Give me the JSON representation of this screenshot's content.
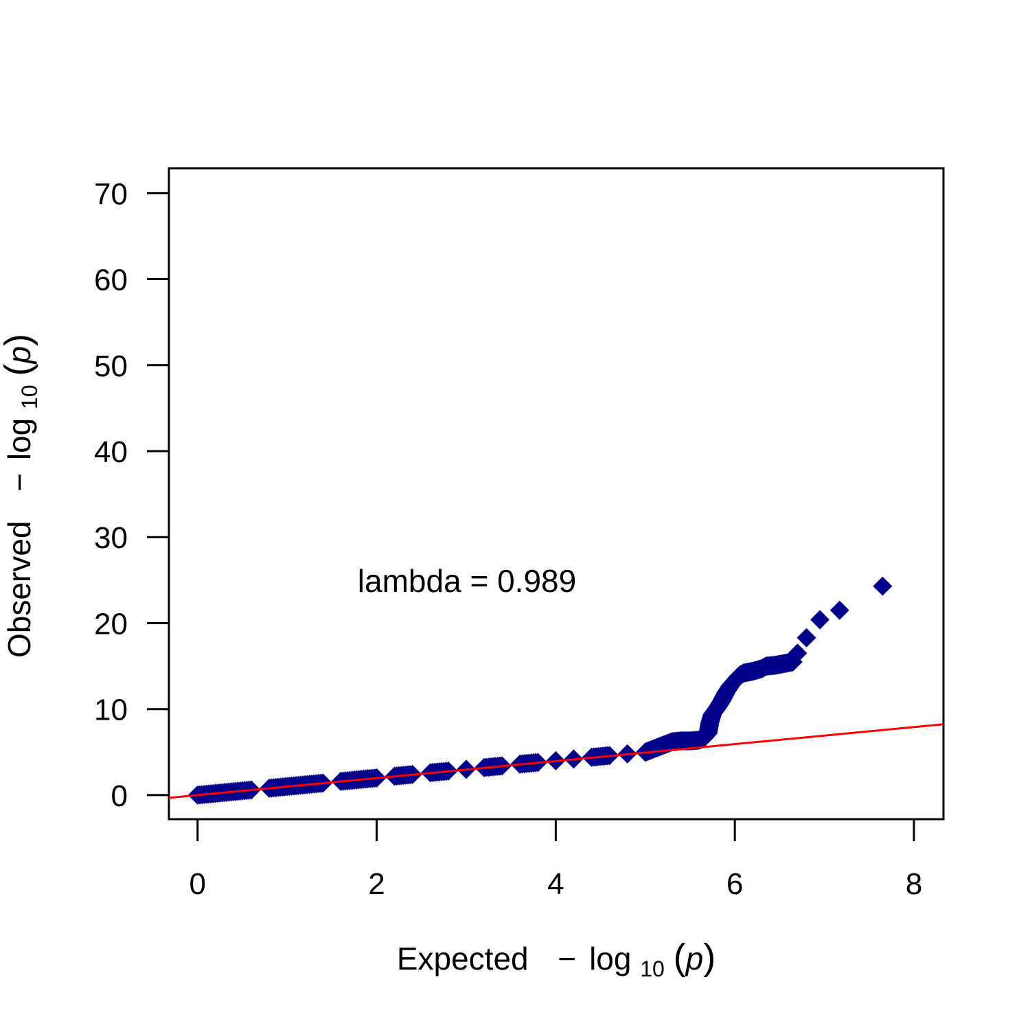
{
  "chart_data": {
    "type": "scatter",
    "title": "",
    "xlabel": {
      "prefix": "Expected",
      "minus": "−",
      "log": "log",
      "sub": "10",
      "var": "p"
    },
    "ylabel": {
      "prefix": "Observed",
      "minus": "−",
      "log": "log",
      "sub": "10",
      "var": "p"
    },
    "xlim": [
      -0.32,
      8.33
    ],
    "ylim": [
      -2.8,
      72.9
    ],
    "x_ticks": [
      0,
      2,
      4,
      6,
      8
    ],
    "y_ticks": [
      0,
      10,
      20,
      30,
      40,
      50,
      60,
      70
    ],
    "x_tick_labels": [
      "0",
      "2",
      "4",
      "6",
      "8"
    ],
    "y_tick_labels": [
      "0",
      "10",
      "20",
      "30",
      "40",
      "50",
      "60",
      "70"
    ],
    "grid": false,
    "annotation": "lambda = 0.989",
    "point_color": "#00008B",
    "line_color": "#FF0000",
    "reference_line": {
      "intercept": 0,
      "slope": 0.989
    },
    "points": {
      "x": [
        0.0,
        0.2,
        0.4,
        0.6,
        0.8,
        1.0,
        1.2,
        1.4,
        1.6,
        1.8,
        2.0,
        2.2,
        2.4,
        2.6,
        2.8,
        3.0,
        3.2,
        3.4,
        3.6,
        3.8,
        4.0,
        4.2,
        4.4,
        4.6,
        4.8,
        5.0,
        5.1,
        5.2,
        5.3,
        5.4,
        5.5,
        5.6,
        5.65,
        5.7,
        5.72,
        5.75,
        5.8,
        5.85,
        5.9,
        5.95,
        6.0,
        6.05,
        6.1,
        6.2,
        6.3,
        6.35,
        6.45,
        6.55,
        6.65,
        6.7,
        6.8,
        6.95,
        7.17,
        7.65
      ],
      "y": [
        0.0,
        0.2,
        0.4,
        0.6,
        0.8,
        1.0,
        1.2,
        1.4,
        1.6,
        1.8,
        2.0,
        2.2,
        2.4,
        2.6,
        2.8,
        3.0,
        3.2,
        3.4,
        3.6,
        3.8,
        4.0,
        4.2,
        4.4,
        4.6,
        4.8,
        5.0,
        5.4,
        5.8,
        6.2,
        6.3,
        6.3,
        6.4,
        6.6,
        7.2,
        8.4,
        9.4,
        10.1,
        10.9,
        11.9,
        12.7,
        13.3,
        13.9,
        14.2,
        14.4,
        14.7,
        15.0,
        15.1,
        15.3,
        15.5,
        16.5,
        18.3,
        20.4,
        21.5,
        24.3
      ]
    }
  }
}
